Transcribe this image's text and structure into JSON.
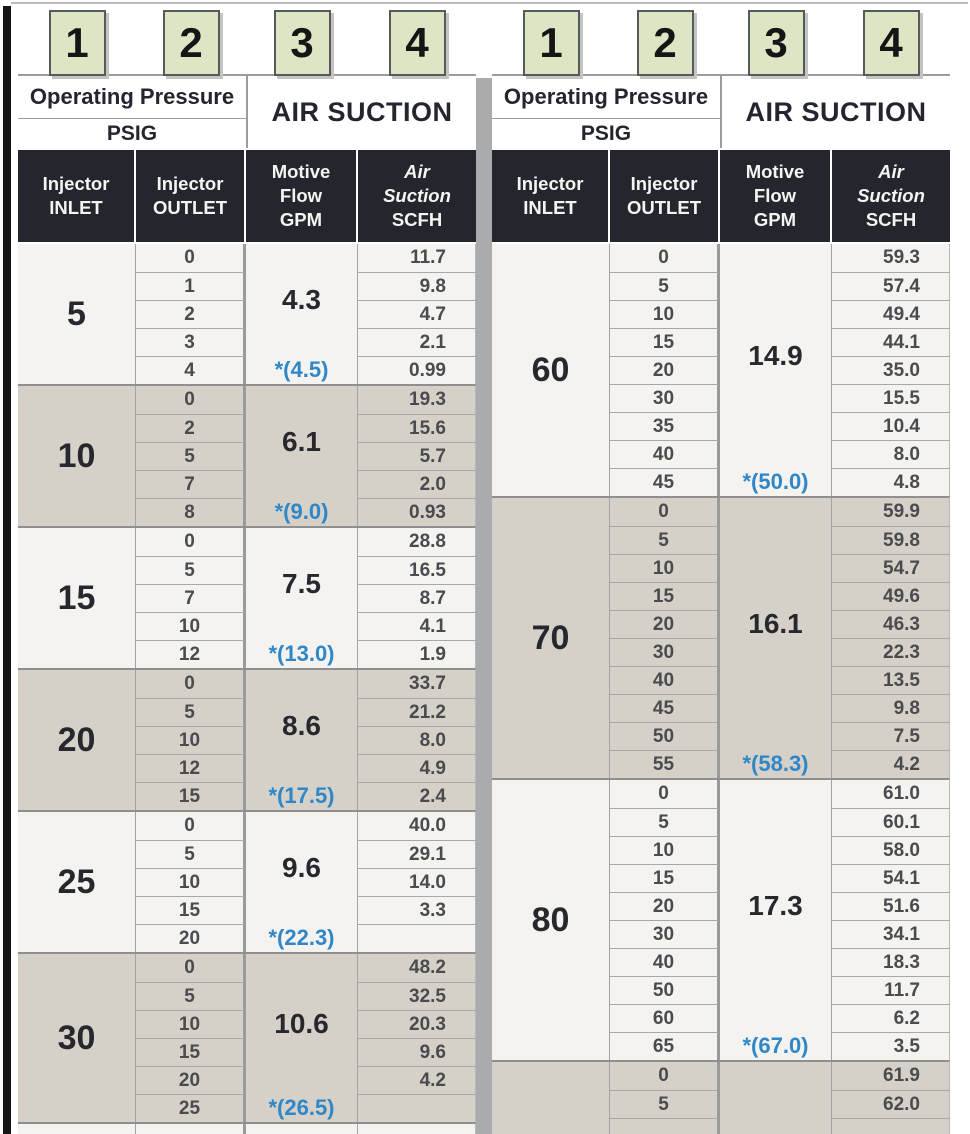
{
  "badges": [
    "1",
    "2",
    "3",
    "4"
  ],
  "header": {
    "operating_pressure": "Operating Pressure",
    "psig": "PSIG",
    "air_suction": "AIR SUCTION",
    "col_inlet": "Injector\nINLET",
    "col_outlet": "Injector\nOUTLET",
    "col_motive": "Motive\nFlow\nGPM",
    "col_air_name": "Air\nSuction",
    "col_air_unit": "SCFH"
  },
  "colors": {
    "badge_green": "#dde6c4",
    "band_light": "#f4f3f0",
    "band_dark": "#d5d0c8",
    "header_dark": "#23262d",
    "flow_max_blue": "#2f87c8",
    "divider_gray": "#a9abad"
  },
  "tables": [
    {
      "groups": [
        {
          "inlet": "5",
          "motive_flow": "4.3",
          "motive_flow_max": "*(4.5)",
          "rows": [
            {
              "outlet": "0",
              "scfh": "11.7"
            },
            {
              "outlet": "1",
              "scfh": "9.8"
            },
            {
              "outlet": "2",
              "scfh": "4.7"
            },
            {
              "outlet": "3",
              "scfh": "2.1"
            },
            {
              "outlet": "4",
              "scfh": "0.99"
            }
          ]
        },
        {
          "inlet": "10",
          "motive_flow": "6.1",
          "motive_flow_max": "*(9.0)",
          "rows": [
            {
              "outlet": "0",
              "scfh": "19.3"
            },
            {
              "outlet": "2",
              "scfh": "15.6"
            },
            {
              "outlet": "5",
              "scfh": "5.7"
            },
            {
              "outlet": "7",
              "scfh": "2.0"
            },
            {
              "outlet": "8",
              "scfh": "0.93"
            }
          ]
        },
        {
          "inlet": "15",
          "motive_flow": "7.5",
          "motive_flow_max": "*(13.0)",
          "rows": [
            {
              "outlet": "0",
              "scfh": "28.8"
            },
            {
              "outlet": "5",
              "scfh": "16.5"
            },
            {
              "outlet": "7",
              "scfh": "8.7"
            },
            {
              "outlet": "10",
              "scfh": "4.1"
            },
            {
              "outlet": "12",
              "scfh": "1.9"
            }
          ]
        },
        {
          "inlet": "20",
          "motive_flow": "8.6",
          "motive_flow_max": "*(17.5)",
          "rows": [
            {
              "outlet": "0",
              "scfh": "33.7"
            },
            {
              "outlet": "5",
              "scfh": "21.2"
            },
            {
              "outlet": "10",
              "scfh": "8.0"
            },
            {
              "outlet": "12",
              "scfh": "4.9"
            },
            {
              "outlet": "15",
              "scfh": "2.4"
            }
          ]
        },
        {
          "inlet": "25",
          "motive_flow": "9.6",
          "motive_flow_max": "*(22.3)",
          "rows": [
            {
              "outlet": "0",
              "scfh": "40.0"
            },
            {
              "outlet": "5",
              "scfh": "29.1"
            },
            {
              "outlet": "10",
              "scfh": "14.0"
            },
            {
              "outlet": "15",
              "scfh": "3.3"
            },
            {
              "outlet": "20",
              "scfh": ""
            }
          ]
        },
        {
          "inlet": "30",
          "motive_flow": "10.6",
          "motive_flow_max": "*(26.5)",
          "rows": [
            {
              "outlet": "0",
              "scfh": "48.2"
            },
            {
              "outlet": "5",
              "scfh": "32.5"
            },
            {
              "outlet": "10",
              "scfh": "20.3"
            },
            {
              "outlet": "15",
              "scfh": "9.6"
            },
            {
              "outlet": "20",
              "scfh": "4.2"
            },
            {
              "outlet": "25",
              "scfh": ""
            }
          ]
        },
        {
          "inlet": "",
          "motive_flow": "",
          "motive_flow_max": "",
          "rows": [
            {
              "outlet": "",
              "scfh": ""
            }
          ]
        }
      ]
    },
    {
      "groups": [
        {
          "inlet": "60",
          "motive_flow": "14.9",
          "motive_flow_max": "*(50.0)",
          "rows": [
            {
              "outlet": "0",
              "scfh": "59.3"
            },
            {
              "outlet": "5",
              "scfh": "57.4"
            },
            {
              "outlet": "10",
              "scfh": "49.4"
            },
            {
              "outlet": "15",
              "scfh": "44.1"
            },
            {
              "outlet": "20",
              "scfh": "35.0"
            },
            {
              "outlet": "30",
              "scfh": "15.5"
            },
            {
              "outlet": "35",
              "scfh": "10.4"
            },
            {
              "outlet": "40",
              "scfh": "8.0"
            },
            {
              "outlet": "45",
              "scfh": "4.8"
            }
          ]
        },
        {
          "inlet": "70",
          "motive_flow": "16.1",
          "motive_flow_max": "*(58.3)",
          "rows": [
            {
              "outlet": "0",
              "scfh": "59.9"
            },
            {
              "outlet": "5",
              "scfh": "59.8"
            },
            {
              "outlet": "10",
              "scfh": "54.7"
            },
            {
              "outlet": "15",
              "scfh": "49.6"
            },
            {
              "outlet": "20",
              "scfh": "46.3"
            },
            {
              "outlet": "30",
              "scfh": "22.3"
            },
            {
              "outlet": "40",
              "scfh": "13.5"
            },
            {
              "outlet": "45",
              "scfh": "9.8"
            },
            {
              "outlet": "50",
              "scfh": "7.5"
            },
            {
              "outlet": "55",
              "scfh": "4.2"
            }
          ]
        },
        {
          "inlet": "80",
          "motive_flow": "17.3",
          "motive_flow_max": "*(67.0)",
          "rows": [
            {
              "outlet": "0",
              "scfh": "61.0"
            },
            {
              "outlet": "5",
              "scfh": "60.1"
            },
            {
              "outlet": "10",
              "scfh": "58.0"
            },
            {
              "outlet": "15",
              "scfh": "54.1"
            },
            {
              "outlet": "20",
              "scfh": "51.6"
            },
            {
              "outlet": "30",
              "scfh": "34.1"
            },
            {
              "outlet": "40",
              "scfh": "18.3"
            },
            {
              "outlet": "50",
              "scfh": "11.7"
            },
            {
              "outlet": "60",
              "scfh": "6.2"
            },
            {
              "outlet": "65",
              "scfh": "3.5"
            }
          ]
        },
        {
          "inlet": "",
          "motive_flow": "",
          "motive_flow_max": "",
          "rows": [
            {
              "outlet": "0",
              "scfh": "61.9"
            },
            {
              "outlet": "5",
              "scfh": "62.0"
            },
            {
              "outlet": "",
              "scfh": ""
            }
          ]
        }
      ]
    }
  ]
}
